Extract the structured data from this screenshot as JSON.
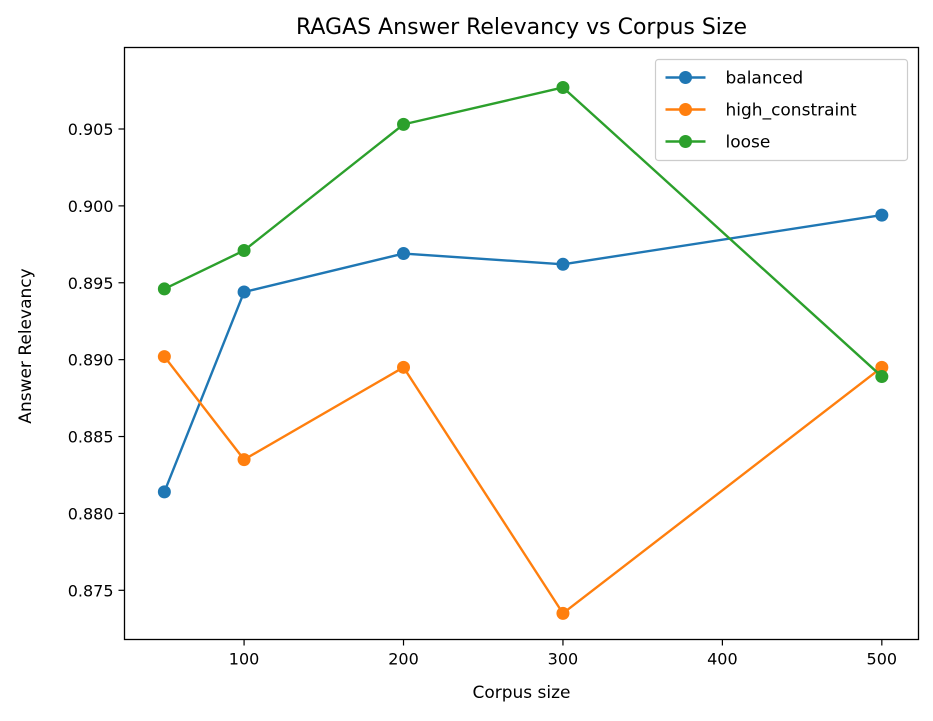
{
  "chart_data": {
    "type": "line",
    "title": "RAGAS Answer Relevancy vs Corpus Size",
    "xlabel": "Corpus size",
    "ylabel": "Answer Relevancy",
    "x": [
      50,
      100,
      200,
      300,
      500
    ],
    "xlim": [
      25,
      523
    ],
    "ylim": [
      0.8718,
      0.9103
    ],
    "xticks": [
      100,
      200,
      300,
      400,
      500
    ],
    "xtick_labels": [
      "100",
      "200",
      "300",
      "400",
      "500"
    ],
    "yticks": [
      0.875,
      0.88,
      0.885,
      0.89,
      0.895,
      0.9,
      0.905
    ],
    "ytick_labels": [
      "0.875",
      "0.880",
      "0.885",
      "0.890",
      "0.895",
      "0.900",
      "0.905"
    ],
    "grid": false,
    "legend_position": "top-right",
    "series": [
      {
        "name": "balanced",
        "color": "#1f77b4",
        "values": [
          0.8814,
          0.8944,
          0.8969,
          0.8962,
          0.8994
        ]
      },
      {
        "name": "high_constraint",
        "color": "#ff7f0e",
        "values": [
          0.8902,
          0.8835,
          0.8895,
          0.8735,
          0.8895
        ]
      },
      {
        "name": "loose",
        "color": "#2ca02c",
        "values": [
          0.8946,
          0.8971,
          0.9053,
          0.9077,
          0.8889
        ]
      }
    ]
  }
}
